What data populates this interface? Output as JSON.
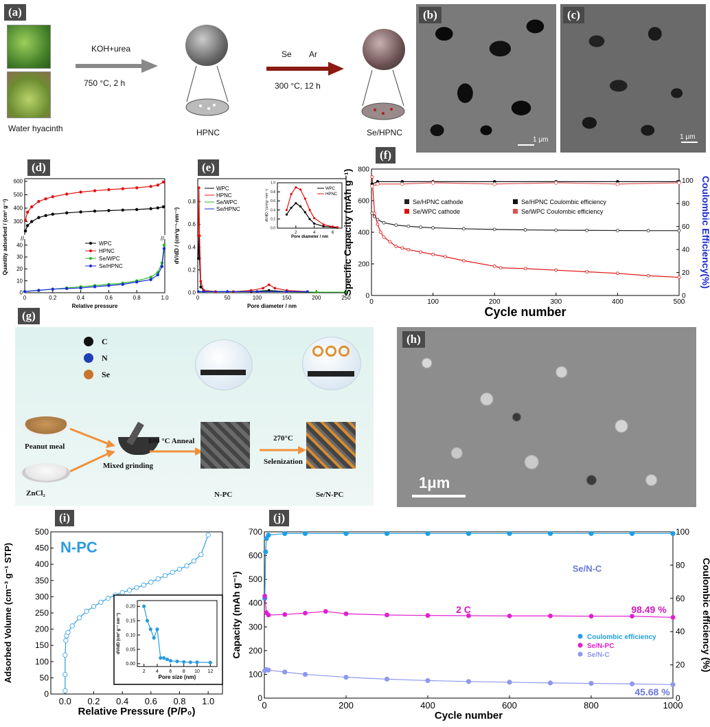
{
  "panels": {
    "a": {
      "label": "(a)",
      "source_caption": "Water hyacinth",
      "step1_top": "KOH+urea",
      "step1_bottom": "750 °C, 2 h",
      "hpnc_caption": "HPNC",
      "step2_top_se": "Se",
      "step2_top_ar": "Ar",
      "step2_bottom": "300 °C, 12 h",
      "sehpnc_caption": "Se/HPNC"
    },
    "b": {
      "label": "(b)",
      "scale": "1 μm"
    },
    "c": {
      "label": "(c)",
      "scale": "1 μm"
    },
    "d": {
      "label": "(d)"
    },
    "e": {
      "label": "(e)"
    },
    "f": {
      "label": "(f)"
    },
    "g": {
      "label": "(g)",
      "legend_c": "C",
      "legend_n": "N",
      "legend_se": "Se",
      "peanut": "Peanut meal",
      "zncl2": "ZnCl₂",
      "mixed": "Mixed grinding",
      "anneal": "800 °C Anneal",
      "sel_temp": "270°C",
      "sel": "Selenization",
      "npc": "N-PC",
      "senpc": "Se/N-PC"
    },
    "h": {
      "label": "(h)",
      "scale": "1μm"
    },
    "i": {
      "label": "(i)"
    },
    "j": {
      "label": "(j)"
    }
  },
  "chart_data": [
    {
      "id": "d",
      "type": "line",
      "xlabel": "Relative pressure",
      "ylabel": "Quantity adsorbed / (cm³ g⁻¹)",
      "xlim": [
        0,
        1.0
      ],
      "x_ticks": [
        "0",
        "0.2",
        "0.4",
        "0.6",
        "0.8",
        "1.0"
      ],
      "y_ticks_top": [
        "300",
        "400",
        "500",
        "600"
      ],
      "y_ticks_bottom": [
        "0",
        "10",
        "20",
        "30",
        "40"
      ],
      "y_break": true,
      "legend": [
        "WPC",
        "HPNC",
        "Se/WPC",
        "Se/HPNC"
      ],
      "colors": [
        "#000000",
        "#e01010",
        "#22b822",
        "#1a2bd6"
      ],
      "series": [
        {
          "name": "WPC",
          "x": [
            0.005,
            0.02,
            0.05,
            0.1,
            0.15,
            0.2,
            0.3,
            0.4,
            0.5,
            0.6,
            0.7,
            0.8,
            0.9,
            0.95,
            0.99
          ],
          "y": [
            230,
            270,
            300,
            330,
            345,
            355,
            365,
            372,
            378,
            382,
            386,
            390,
            396,
            402,
            410
          ]
        },
        {
          "name": "HPNC",
          "x": [
            0.005,
            0.02,
            0.05,
            0.1,
            0.15,
            0.2,
            0.3,
            0.4,
            0.5,
            0.6,
            0.7,
            0.8,
            0.9,
            0.95,
            0.99
          ],
          "y": [
            310,
            370,
            410,
            450,
            470,
            485,
            505,
            520,
            530,
            538,
            545,
            552,
            562,
            572,
            595
          ]
        },
        {
          "name": "Se/WPC",
          "x": [
            0.0,
            0.1,
            0.2,
            0.3,
            0.4,
            0.5,
            0.6,
            0.7,
            0.8,
            0.9,
            0.95,
            0.98,
            0.995
          ],
          "y": [
            1,
            2,
            3,
            4,
            5,
            6,
            7,
            8,
            10,
            13,
            17,
            25,
            40
          ]
        },
        {
          "name": "Se/HPNC",
          "x": [
            0.0,
            0.1,
            0.2,
            0.3,
            0.4,
            0.5,
            0.6,
            0.7,
            0.8,
            0.9,
            0.95,
            0.98,
            0.995
          ],
          "y": [
            1,
            2,
            3,
            3.5,
            4,
            5,
            6,
            7,
            9,
            11,
            15,
            22,
            37
          ]
        }
      ]
    },
    {
      "id": "e",
      "type": "line",
      "xlabel": "Pore diameter / nm",
      "ylabel": "dV/dD / (cm³g⁻¹·nm⁻¹)",
      "xlim": [
        0,
        250
      ],
      "ylim": [
        0,
        1.0
      ],
      "x_ticks": [
        "0",
        "50",
        "100",
        "150",
        "200",
        "250"
      ],
      "y_ticks": [
        "0.0",
        "0.2",
        "0.4",
        "0.6",
        "0.8"
      ],
      "legend": [
        "WPC",
        "HPNC",
        "Se/WPC",
        "Se/HPNC"
      ],
      "series": [
        {
          "name": "WPC",
          "x": [
            1,
            2,
            3,
            5,
            10,
            30,
            60,
            90,
            120,
            150,
            185
          ],
          "y": [
            0.3,
            0.5,
            0.3,
            0.05,
            0.02,
            0.01,
            0.01,
            0.01,
            0.02,
            0.01,
            0.01
          ]
        },
        {
          "name": "HPNC",
          "x": [
            1,
            2,
            3,
            5,
            10,
            30,
            60,
            90,
            110,
            120,
            130,
            150,
            185
          ],
          "y": [
            0.5,
            0.92,
            0.5,
            0.1,
            0.02,
            0.01,
            0.01,
            0.02,
            0.04,
            0.07,
            0.04,
            0.02,
            0.01
          ]
        },
        {
          "name": "Se/WPC",
          "x": [
            1,
            10,
            50,
            100,
            150,
            200,
            250
          ],
          "y": [
            0.01,
            0.01,
            0.01,
            0.01,
            0.01,
            0.005,
            0.005
          ]
        },
        {
          "name": "Se/HPNC",
          "x": [
            1,
            10,
            50,
            100,
            150,
            185
          ],
          "y": [
            0.01,
            0.01,
            0.01,
            0.01,
            0.01,
            0.01
          ]
        }
      ],
      "inset": {
        "xlabel": "Pore diameter / nm",
        "ylabel": "dV/dD / (cm³g⁻¹nm⁻¹)",
        "xlim": [
          0,
          7
        ],
        "ylim": [
          0,
          1.0
        ],
        "x_ticks": [
          "2",
          "4",
          "6"
        ],
        "y_ticks": [
          "0.0",
          "0.2",
          "0.4",
          "0.6",
          "0.8",
          "1.0"
        ],
        "series": [
          {
            "name": "WPC",
            "x": [
              1,
              1.5,
              2,
              2.5,
              3,
              3.5,
              4,
              5,
              6,
              6.5
            ],
            "y": [
              0.3,
              0.45,
              0.55,
              0.48,
              0.35,
              0.2,
              0.1,
              0.04,
              0.02,
              0.01
            ]
          },
          {
            "name": "HPNC",
            "x": [
              1,
              1.5,
              2,
              2.5,
              3,
              3.5,
              4,
              5,
              6,
              6.5
            ],
            "y": [
              0.4,
              0.75,
              0.9,
              0.85,
              0.65,
              0.4,
              0.22,
              0.08,
              0.03,
              0.02
            ]
          }
        ]
      }
    },
    {
      "id": "f",
      "type": "scatter",
      "xlabel": "Cycle number",
      "ylabel": "Specific Capacity (mAh g⁻¹)",
      "ylabel_right": "Coulombic Efficiency(%)",
      "xlim": [
        0,
        500
      ],
      "ylim": [
        0,
        800
      ],
      "ylim_right": [
        0,
        110
      ],
      "x_ticks": [
        "0",
        "100",
        "200",
        "300",
        "400",
        "500"
      ],
      "y_ticks": [
        "0",
        "200",
        "400",
        "600",
        "800"
      ],
      "y_ticks_right": [
        "0",
        "20",
        "40",
        "60",
        "80",
        "100"
      ],
      "legend": [
        "Se/HPNC cathode",
        "Se/WPC cathode",
        "Se/HPNC Coulombic efficiency",
        "Se/WPC Coulombic efficiency"
      ],
      "series": [
        {
          "name": "Se/HPNC cathode",
          "x": [
            1,
            5,
            10,
            20,
            40,
            60,
            80,
            100,
            150,
            200,
            250,
            300,
            350,
            400,
            450,
            500
          ],
          "y": [
            520,
            500,
            480,
            460,
            445,
            438,
            432,
            428,
            422,
            418,
            415,
            413,
            412,
            411,
            410,
            410
          ]
        },
        {
          "name": "Se/WPC cathode",
          "x": [
            1,
            5,
            10,
            15,
            20,
            30,
            40,
            50,
            60,
            80,
            100,
            120,
            150,
            200,
            210,
            250,
            300,
            350,
            400,
            450,
            500
          ],
          "y": [
            750,
            520,
            450,
            400,
            370,
            340,
            310,
            300,
            290,
            275,
            260,
            245,
            220,
            185,
            175,
            170,
            160,
            150,
            140,
            125,
            115
          ]
        },
        {
          "name": "Se/HPNC Coulombic efficiency",
          "x": [
            1,
            10,
            50,
            100,
            200,
            300,
            400,
            500
          ],
          "y": [
            97,
            99,
            99,
            99,
            99,
            99,
            99,
            99
          ]
        },
        {
          "name": "Se/WPC Coulombic efficiency",
          "x": [
            1,
            10,
            50,
            100,
            200,
            300,
            400,
            500
          ],
          "y": [
            95,
            97,
            97,
            98,
            97,
            98,
            97,
            98
          ]
        }
      ]
    },
    {
      "id": "i",
      "type": "line",
      "title": "N-PC",
      "xlabel": "Relative Pressure (P/P₀)",
      "ylabel": "Adsorbed Volume (cm⁻³ g⁻¹ STP)",
      "xlim": [
        -0.1,
        1.1
      ],
      "ylim": [
        0,
        500
      ],
      "x_ticks": [
        "0.0",
        "0.2",
        "0.4",
        "0.6",
        "0.8",
        "1.0"
      ],
      "y_ticks": [
        "0",
        "50",
        "100",
        "150",
        "200",
        "250",
        "300",
        "350",
        "400",
        "450",
        "500"
      ],
      "series": [
        {
          "name": "N-PC",
          "x": [
            0.0,
            0.0,
            0.0,
            0.005,
            0.01,
            0.02,
            0.05,
            0.1,
            0.15,
            0.2,
            0.25,
            0.3,
            0.35,
            0.4,
            0.45,
            0.5,
            0.55,
            0.6,
            0.65,
            0.7,
            0.75,
            0.8,
            0.85,
            0.9,
            0.95,
            1.0
          ],
          "y": [
            10,
            60,
            120,
            165,
            180,
            190,
            210,
            235,
            255,
            270,
            283,
            295,
            305,
            313,
            320,
            328,
            336,
            345,
            355,
            365,
            375,
            385,
            395,
            410,
            430,
            490
          ]
        }
      ],
      "inset": {
        "xlabel": "Pore size (nm)",
        "ylabel": "dV/dD (cm³ g⁻¹ nm⁻¹)",
        "xlim": [
          1,
          13
        ],
        "ylim": [
          -0.01,
          0.22
        ],
        "x_ticks": [
          "2",
          "4",
          "6",
          "8",
          "10",
          "12"
        ],
        "y_ticks": [
          "0.00",
          "0.05",
          "0.10",
          "0.15",
          "0.20"
        ],
        "series": [
          {
            "name": "N-PC",
            "x": [
              2,
              2.5,
              3,
              3.5,
              4,
              4.5,
              5,
              5.5,
              6,
              7,
              8,
              9,
              10,
              12
            ],
            "y": [
              0.2,
              0.15,
              0.12,
              0.09,
              0.12,
              0.02,
              0.02,
              0.015,
              0.01,
              0.008,
              0.006,
              0.005,
              0.005,
              0.004
            ]
          }
        ]
      }
    },
    {
      "id": "j",
      "type": "scatter",
      "xlabel": "Cycle number",
      "ylabel": "Capacity (mAh g⁻¹)",
      "ylabel_right": "Coulombic efficiency (%)",
      "xlim": [
        0,
        1000
      ],
      "ylim": [
        0,
        700
      ],
      "ylim_right": [
        0,
        100
      ],
      "x_ticks": [
        "0",
        "200",
        "400",
        "600",
        "800",
        "1000"
      ],
      "y_ticks": [
        "0",
        "100",
        "200",
        "300",
        "400",
        "500",
        "600",
        "700"
      ],
      "y_ticks_right": [
        "0",
        "20",
        "40",
        "60",
        "80",
        "100"
      ],
      "legend": [
        "Coulombic efficiency",
        "Se/N-PC",
        "Se/N-C"
      ],
      "annotations": [
        "Se/N-C",
        "2 C",
        "98.49 %",
        "45.68 %"
      ],
      "series": [
        {
          "name": "Coulombic efficiency",
          "x": [
            1,
            3,
            5,
            10,
            50,
            100,
            200,
            300,
            400,
            500,
            600,
            700,
            800,
            900,
            1000
          ],
          "y": [
            60,
            88,
            96,
            98,
            99,
            99,
            99,
            99,
            99,
            99,
            99,
            99,
            99,
            99,
            99
          ]
        },
        {
          "name": "Se/N-PC",
          "x": [
            1,
            5,
            10,
            50,
            100,
            150,
            200,
            300,
            400,
            500,
            600,
            700,
            800,
            900,
            1000
          ],
          "y": [
            430,
            360,
            350,
            352,
            358,
            365,
            355,
            350,
            348,
            347,
            346,
            346,
            345,
            345,
            340
          ]
        },
        {
          "name": "Se/N-C",
          "x": [
            1,
            5,
            10,
            50,
            100,
            200,
            300,
            400,
            500,
            600,
            700,
            800,
            900,
            1000
          ],
          "y": [
            115,
            120,
            118,
            110,
            100,
            88,
            80,
            74,
            70,
            67,
            64,
            62,
            60,
            57
          ]
        }
      ]
    }
  ]
}
